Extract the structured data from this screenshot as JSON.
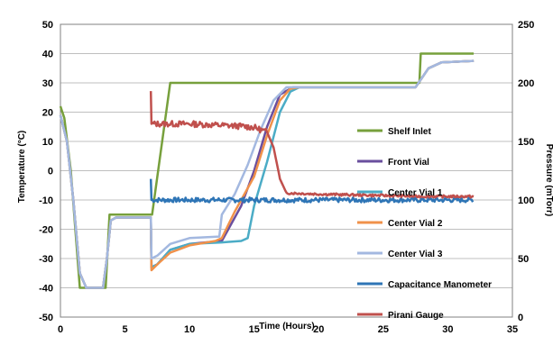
{
  "chart_data": {
    "type": "line",
    "xlabel": "Time (Hours)",
    "ylabel": "Temperature (°C)",
    "y2label": "Pressure (mTorr)",
    "xlim": [
      0,
      35
    ],
    "ylim": [
      -50,
      50
    ],
    "y2lim": [
      0,
      250
    ],
    "x_ticks": [
      0,
      5,
      10,
      15,
      20,
      25,
      30,
      35
    ],
    "y_ticks": [
      -50,
      -40,
      -30,
      -20,
      -10,
      0,
      10,
      20,
      30,
      40,
      50
    ],
    "y2_ticks": [
      0,
      50,
      100,
      150,
      200,
      250
    ],
    "grid": "horizontal",
    "legend_position": "right-inside",
    "series": [
      {
        "name": "Shelf Inlet",
        "color": "#77a03c",
        "axis": "left",
        "points": [
          [
            0,
            22
          ],
          [
            0.3,
            18
          ],
          [
            0.8,
            0
          ],
          [
            1.5,
            -40
          ],
          [
            3.5,
            -40
          ],
          [
            3.8,
            -15
          ],
          [
            7,
            -15
          ],
          [
            7.1,
            -15
          ],
          [
            8.5,
            30
          ],
          [
            27.8,
            30
          ],
          [
            27.9,
            40
          ],
          [
            32,
            40
          ]
        ]
      },
      {
        "name": "Front Vial",
        "color": "#6a4f9e",
        "axis": "left",
        "points": [
          [
            0,
            19
          ],
          [
            0.5,
            10
          ],
          [
            1,
            -10
          ],
          [
            1.5,
            -35
          ],
          [
            2,
            -40
          ],
          [
            3.3,
            -40
          ],
          [
            3.6,
            -30
          ],
          [
            3.9,
            -17
          ],
          [
            4.3,
            -16
          ],
          [
            7,
            -16
          ],
          [
            7.05,
            -33
          ],
          [
            7.5,
            -32
          ],
          [
            8.5,
            -27
          ],
          [
            10,
            -25
          ],
          [
            12.5,
            -24
          ],
          [
            13,
            -20
          ],
          [
            14,
            -12
          ],
          [
            15,
            0
          ],
          [
            16,
            15
          ],
          [
            17,
            26
          ],
          [
            18,
            28.5
          ],
          [
            27.5,
            28.5
          ],
          [
            28.5,
            35
          ],
          [
            29.5,
            37
          ],
          [
            32,
            37.5
          ]
        ]
      },
      {
        "name": "Center Vial 1",
        "color": "#4bacc6",
        "axis": "left",
        "points": [
          [
            0,
            19
          ],
          [
            0.5,
            10
          ],
          [
            1,
            -10
          ],
          [
            1.5,
            -35
          ],
          [
            2,
            -40
          ],
          [
            3.3,
            -40
          ],
          [
            3.6,
            -30
          ],
          [
            3.9,
            -17
          ],
          [
            4.3,
            -16
          ],
          [
            7,
            -16
          ],
          [
            7.05,
            -33
          ],
          [
            7.5,
            -32
          ],
          [
            8.5,
            -27
          ],
          [
            10,
            -25
          ],
          [
            12.5,
            -24.5
          ],
          [
            14,
            -24
          ],
          [
            14.5,
            -23
          ],
          [
            15,
            -12
          ],
          [
            16,
            3
          ],
          [
            17,
            20
          ],
          [
            17.8,
            27
          ],
          [
            18.5,
            28.5
          ],
          [
            27.5,
            28.5
          ],
          [
            28.5,
            35
          ],
          [
            29.5,
            37
          ],
          [
            32,
            37.5
          ]
        ]
      },
      {
        "name": "Center Vial 2",
        "color": "#f0914a",
        "axis": "left",
        "points": [
          [
            0,
            19
          ],
          [
            0.5,
            10
          ],
          [
            1,
            -10
          ],
          [
            1.5,
            -35
          ],
          [
            2,
            -40
          ],
          [
            3.3,
            -40
          ],
          [
            3.6,
            -30
          ],
          [
            3.9,
            -17
          ],
          [
            4.3,
            -16
          ],
          [
            7,
            -16
          ],
          [
            7.05,
            -34
          ],
          [
            7.5,
            -32
          ],
          [
            8.5,
            -28
          ],
          [
            10,
            -25.5
          ],
          [
            12,
            -24
          ],
          [
            12.5,
            -23
          ],
          [
            13.5,
            -14
          ],
          [
            15,
            -2
          ],
          [
            16,
            12
          ],
          [
            17,
            24
          ],
          [
            17.8,
            28
          ],
          [
            18.5,
            28.5
          ],
          [
            27.5,
            28.5
          ],
          [
            28.5,
            35
          ],
          [
            29.5,
            37
          ],
          [
            32,
            37.5
          ]
        ]
      },
      {
        "name": "Center Vial 3",
        "color": "#a3b8e0",
        "axis": "left",
        "points": [
          [
            0,
            19
          ],
          [
            0.5,
            10
          ],
          [
            1,
            -10
          ],
          [
            1.5,
            -35
          ],
          [
            2,
            -40
          ],
          [
            3.3,
            -40
          ],
          [
            3.6,
            -30
          ],
          [
            3.9,
            -17
          ],
          [
            4.3,
            -16
          ],
          [
            7,
            -16
          ],
          [
            7.05,
            -30
          ],
          [
            7.5,
            -29
          ],
          [
            8.5,
            -25
          ],
          [
            10,
            -23
          ],
          [
            12.3,
            -22.5
          ],
          [
            12.5,
            -15
          ],
          [
            13.5,
            -8
          ],
          [
            14.5,
            2
          ],
          [
            15.5,
            14
          ],
          [
            16.5,
            24
          ],
          [
            17.5,
            28.5
          ],
          [
            27.5,
            28.5
          ],
          [
            28.5,
            35
          ],
          [
            29.5,
            37
          ],
          [
            32,
            37.5
          ]
        ]
      },
      {
        "name": "Capacitance Manometer",
        "color": "#2e75b6",
        "axis": "right",
        "points": [
          [
            7,
            118
          ],
          [
            7.05,
            100
          ],
          [
            8,
            100
          ],
          [
            10,
            100
          ],
          [
            12,
            100
          ],
          [
            14,
            100
          ],
          [
            16,
            100
          ],
          [
            18,
            100
          ],
          [
            20,
            100
          ],
          [
            22,
            100
          ],
          [
            24,
            100
          ],
          [
            26,
            100
          ],
          [
            28,
            100
          ],
          [
            30,
            100
          ],
          [
            32,
            100
          ]
        ]
      },
      {
        "name": "Pirani Gauge",
        "color": "#c0504d",
        "axis": "right",
        "points": [
          [
            7,
            193
          ],
          [
            7.05,
            165
          ],
          [
            8,
            165
          ],
          [
            10,
            165
          ],
          [
            12,
            164
          ],
          [
            14,
            163
          ],
          [
            15,
            162
          ],
          [
            16,
            158
          ],
          [
            16.5,
            145
          ],
          [
            17,
            118
          ],
          [
            17.5,
            106
          ],
          [
            20,
            105
          ],
          [
            24,
            104
          ],
          [
            28,
            103
          ],
          [
            32,
            103
          ]
        ]
      }
    ]
  }
}
